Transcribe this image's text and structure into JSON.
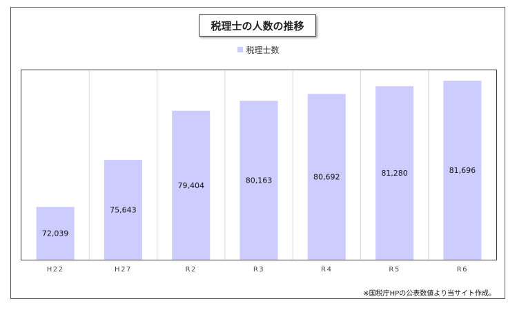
{
  "chart_data": {
    "type": "bar",
    "title": "税理士の人数の推移",
    "categories": [
      "H22",
      "H27",
      "R2",
      "R3",
      "R4",
      "R5",
      "R6"
    ],
    "series": [
      {
        "name": "税理士数",
        "values": [
          72039,
          75643,
          79404,
          80163,
          80692,
          81280,
          81696
        ]
      }
    ],
    "data_labels": [
      "72,039",
      "75,643",
      "79,404",
      "80,163",
      "80,692",
      "81,280",
      "81,696"
    ],
    "ylim": [
      68000,
      82500
    ],
    "grid": "vertical",
    "legend_position": "top-center",
    "colors": {
      "bar": "#ccccff",
      "grid": "#d9d9d9",
      "frame": "#333333"
    }
  },
  "note": "※国税庁HPの公表数値より当サイト作成。"
}
